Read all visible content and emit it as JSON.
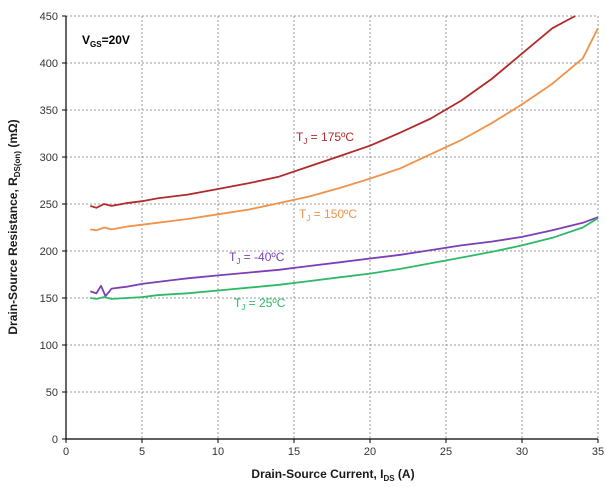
{
  "chart_data": {
    "type": "line",
    "xlabel": {
      "main": "Drain-Source Current, I",
      "sub": "DS",
      "tail": " (A)"
    },
    "ylabel": {
      "main": "Drain-Source Resistance, R",
      "sub": "DS(on)",
      "tail": "  (mΩ)"
    },
    "xlim": [
      0,
      35
    ],
    "ylim": [
      0,
      450
    ],
    "x_ticks": [
      0,
      5,
      10,
      15,
      20,
      25,
      30,
      35
    ],
    "y_ticks": [
      0,
      50,
      100,
      150,
      200,
      250,
      300,
      350,
      400,
      450
    ],
    "grid": true,
    "colors": {
      "t175": "#b22a2a",
      "t150": "#f0924a",
      "tm40": "#7b3fb8",
      "t25": "#2fb86a",
      "grid": "#9a9a9a",
      "axis": "#000000"
    },
    "condition": {
      "main": "V",
      "sub": "GS",
      "tail": "=20V"
    },
    "series": [
      {
        "key": "t175",
        "label": {
          "main": "T",
          "sub": "J",
          "tail": " = 175ºC"
        },
        "x": [
          1.6,
          2,
          2.5,
          3,
          4,
          5,
          6,
          7,
          8,
          10,
          12,
          14,
          16,
          18,
          20,
          22,
          24,
          26,
          28,
          30,
          32,
          33.5
        ],
        "y": [
          248,
          246,
          250,
          248,
          251,
          253,
          256,
          258,
          260,
          266,
          272,
          279,
          290,
          301,
          312,
          326,
          341,
          360,
          383,
          410,
          437,
          455
        ]
      },
      {
        "key": "t150",
        "label": {
          "main": "T",
          "sub": "J",
          "tail": " = 150ºC"
        },
        "x": [
          1.6,
          2,
          2.5,
          3,
          4,
          5,
          6,
          7,
          8,
          10,
          12,
          14,
          16,
          18,
          20,
          22,
          24,
          26,
          28,
          30,
          32,
          34,
          35
        ],
        "y": [
          223,
          222,
          225,
          223,
          226,
          228,
          230,
          232,
          234,
          239,
          244,
          251,
          258,
          267,
          277,
          288,
          303,
          318,
          336,
          356,
          378,
          405,
          437
        ]
      },
      {
        "key": "tm40",
        "label": {
          "main": "T",
          "sub": "J",
          "tail": " = -40ºC"
        },
        "x": [
          1.6,
          2,
          2.3,
          2.6,
          3,
          4,
          5,
          6,
          7,
          8,
          10,
          12,
          14,
          16,
          18,
          20,
          22,
          24,
          26,
          28,
          30,
          32,
          34,
          35
        ],
        "y": [
          157,
          155,
          163,
          152,
          160,
          162,
          165,
          167,
          169,
          171,
          174,
          177,
          180,
          184,
          188,
          192,
          196,
          201,
          206,
          210,
          215,
          222,
          230,
          236
        ]
      },
      {
        "key": "t25",
        "label": {
          "main": "T",
          "sub": "J",
          "tail": " = 25ºC"
        },
        "x": [
          1.6,
          2,
          2.5,
          3,
          4,
          5,
          6,
          7,
          8,
          10,
          12,
          14,
          16,
          18,
          20,
          22,
          24,
          26,
          28,
          30,
          32,
          34,
          35
        ],
        "y": [
          150,
          149,
          151,
          149,
          150,
          151,
          153,
          154,
          155,
          158,
          161,
          164,
          168,
          172,
          176,
          181,
          187,
          193,
          199,
          206,
          214,
          225,
          235
        ]
      }
    ]
  }
}
